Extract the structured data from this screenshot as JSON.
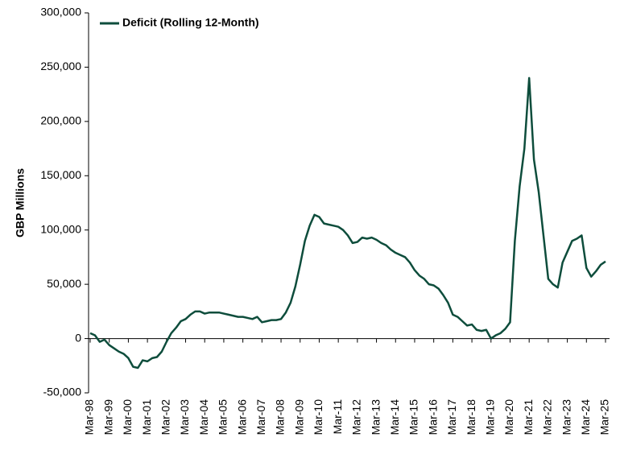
{
  "chart_data": {
    "type": "line",
    "y_label": "GBP Millions",
    "categories": [
      "Mar-98",
      null,
      null,
      null,
      "Mar-99",
      null,
      null,
      null,
      "Mar-00",
      null,
      null,
      null,
      "Mar-01",
      null,
      null,
      null,
      "Mar-02",
      null,
      null,
      null,
      "Mar-03",
      null,
      null,
      null,
      "Mar-04",
      null,
      null,
      null,
      "Mar-05",
      null,
      null,
      null,
      "Mar-06",
      null,
      null,
      null,
      "Mar-07",
      null,
      null,
      null,
      "Mar-08",
      null,
      null,
      null,
      "Mar-09",
      null,
      null,
      null,
      "Mar-10",
      null,
      null,
      null,
      "Mar-11",
      null,
      null,
      null,
      "Mar-12",
      null,
      null,
      null,
      "Mar-13",
      null,
      null,
      null,
      "Mar-14",
      null,
      null,
      null,
      "Mar-15",
      null,
      null,
      null,
      "Mar-16",
      null,
      null,
      null,
      "Mar-17",
      null,
      null,
      null,
      "Mar-18",
      null,
      null,
      null,
      "Mar-19",
      null,
      null,
      null,
      "Mar-20",
      null,
      null,
      null,
      "Mar-21",
      null,
      null,
      null,
      "Mar-22",
      null,
      null,
      null,
      "Mar-23",
      null,
      null,
      null,
      "Mar-24",
      null,
      null,
      null,
      "Mar-25"
    ],
    "series": [
      {
        "name": "Deficit (Rolling 12-Month)",
        "color": "#0e4d3c",
        "values": [
          5000,
          3000,
          -3000,
          -1000,
          -6000,
          -9000,
          -12000,
          -14000,
          -18000,
          -26000,
          -27000,
          -20000,
          -21000,
          -18000,
          -17000,
          -12000,
          -3000,
          5000,
          10000,
          16000,
          18000,
          22000,
          25000,
          25000,
          23000,
          24000,
          24000,
          24000,
          23000,
          22000,
          21000,
          20000,
          20000,
          19000,
          18000,
          20000,
          15000,
          16000,
          17000,
          17000,
          18000,
          24000,
          33000,
          48000,
          68000,
          90000,
          104000,
          114000,
          112000,
          106000,
          105000,
          104000,
          103000,
          100000,
          95000,
          88000,
          89000,
          93000,
          92000,
          93000,
          91000,
          88000,
          86000,
          82000,
          79000,
          77000,
          75000,
          70000,
          63000,
          58000,
          55000,
          50000,
          49000,
          46000,
          40000,
          33000,
          22000,
          20000,
          16000,
          12000,
          13000,
          8000,
          7000,
          8000,
          0,
          3000,
          5000,
          9000,
          15000,
          90000,
          140000,
          175000,
          240000,
          165000,
          135000,
          95000,
          55000,
          50000,
          47000,
          70000,
          80000,
          90000,
          92000,
          95000,
          65000,
          57000,
          62000,
          68000,
          71000
        ]
      }
    ],
    "ylim": [
      -50000,
      300000
    ],
    "yticks": [
      {
        "value": -50000,
        "label": "-50,000"
      },
      0,
      {
        "value": 50000,
        "label": "50,000"
      },
      {
        "value": 100000,
        "label": "100,000"
      },
      {
        "value": 150000,
        "label": "150,000"
      },
      {
        "value": 200000,
        "label": "200,000"
      },
      {
        "value": 250000,
        "label": "250,000"
      },
      {
        "value": 300000,
        "label": "300,000"
      }
    ],
    "grid": false,
    "legend": "top-left"
  }
}
